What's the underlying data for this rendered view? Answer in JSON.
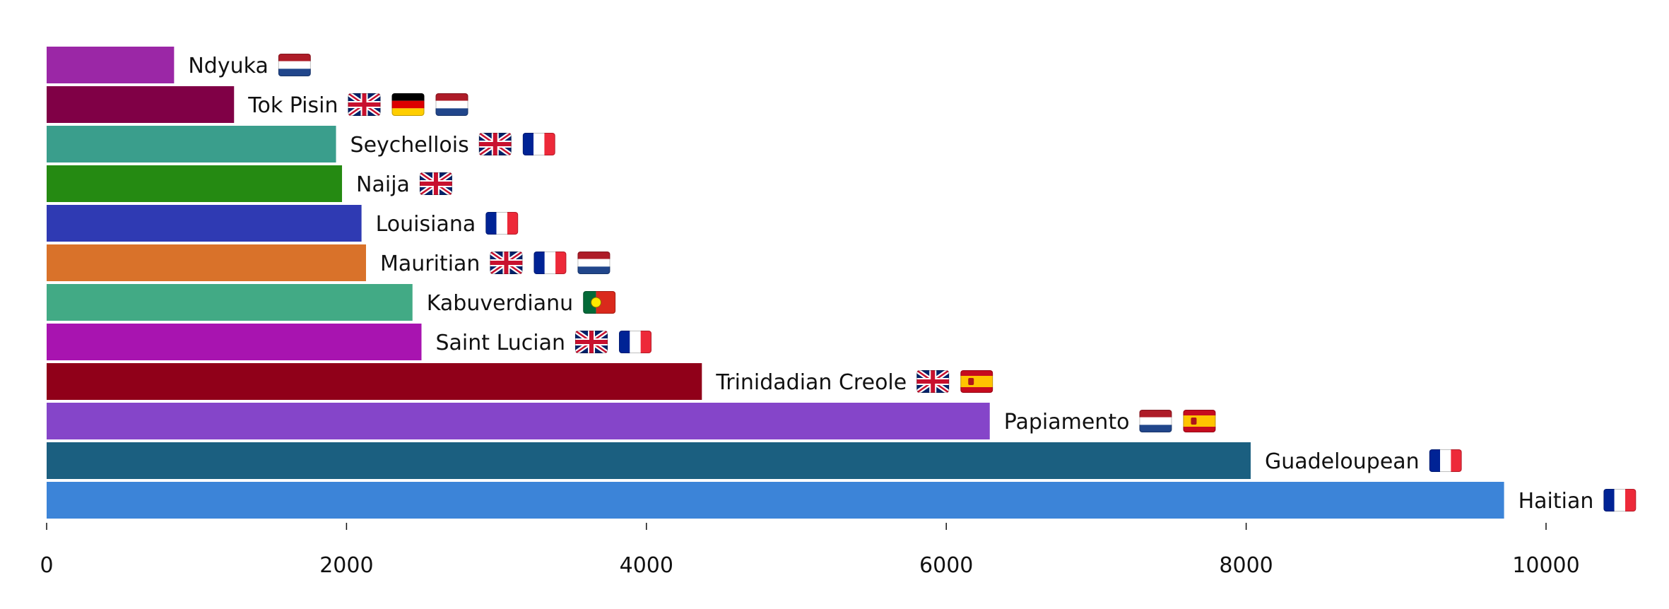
{
  "chart_data": {
    "type": "bar",
    "orientation": "horizontal",
    "title": "",
    "xlabel": "",
    "ylabel": "",
    "xlim": [
      0,
      10600
    ],
    "xticks": [
      0,
      2000,
      4000,
      6000,
      8000,
      10000
    ],
    "xtick_labels": [
      "0",
      "2000",
      "4000",
      "6000",
      "8000",
      "10000"
    ],
    "grid": false,
    "categories": [
      "Ndyuka",
      "Tok Pisin",
      "Seychellois",
      "Naija",
      "Louisiana",
      "Mauritian",
      "Kabuverdianu",
      "Saint Lucian",
      "Trinidadian Creole",
      "Papiamento",
      "Guadeloupean",
      "Haitian"
    ],
    "values": [
      850,
      1250,
      1930,
      1970,
      2100,
      2130,
      2440,
      2500,
      4370,
      6290,
      8030,
      9720
    ],
    "colors": [
      "#9b27a6",
      "#800046",
      "#3a9e8c",
      "#258a12",
      "#2f3ab3",
      "#d9722a",
      "#42aa85",
      "#a814b0",
      "#900019",
      "#8545c9",
      "#1b5f80",
      "#3c84d8"
    ],
    "flags": [
      [
        "netherlands-flag"
      ],
      [
        "uk-flag",
        "germany-flag",
        "netherlands-flag"
      ],
      [
        "uk-flag",
        "france-flag"
      ],
      [
        "uk-flag"
      ],
      [
        "france-flag"
      ],
      [
        "uk-flag",
        "france-flag",
        "netherlands-flag"
      ],
      [
        "portugal-flag"
      ],
      [
        "uk-flag",
        "france-flag"
      ],
      [
        "uk-flag",
        "spain-flag"
      ],
      [
        "netherlands-flag",
        "spain-flag"
      ],
      [
        "france-flag"
      ],
      [
        "france-flag"
      ]
    ]
  }
}
